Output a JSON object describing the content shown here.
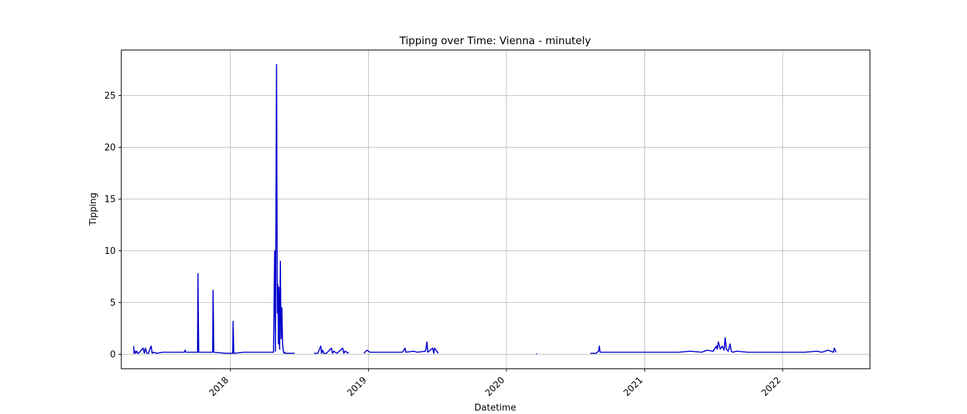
{
  "chart_data": {
    "type": "line",
    "title": "Tipping over Time: Vienna - minutely",
    "xlabel": "Datetime",
    "ylabel": "Tipping",
    "x_ticks": [
      "2018",
      "2019",
      "2020",
      "2021",
      "2022"
    ],
    "y_ticks": [
      "0",
      "5",
      "10",
      "15",
      "20",
      "25"
    ],
    "xlim": [
      "2017-03-18",
      "2022-08-20"
    ],
    "ylim": [
      -1.4,
      29.4
    ],
    "grid": true,
    "line_color": "#0000cc",
    "series": [
      {
        "segments": [
          {
            "x": [
              "2017-04-20",
              "2017-04-21",
              "2017-04-24",
              "2017-04-25",
              "2017-04-28",
              "2017-05-01",
              "2017-05-03",
              "2017-05-15",
              "2017-05-18",
              "2017-05-21",
              "2017-05-25",
              "2017-05-29",
              "2017-06-05",
              "2017-06-08",
              "2017-06-12",
              "2017-06-20",
              "2017-07-05",
              "2017-07-20",
              "2017-08-05",
              "2017-08-20",
              "2017-09-01",
              "2017-09-03",
              "2017-09-05",
              "2017-09-20",
              "2017-10-06",
              "2017-10-07",
              "2017-10-09",
              "2017-10-20",
              "2017-11-15",
              "2017-11-16",
              "2017-11-18",
              "2017-12-20",
              "2018-01-07",
              "2018-01-08",
              "2018-01-10",
              "2018-02-05",
              "2018-03-05",
              "2018-04-05",
              "2018-04-25",
              "2018-04-28",
              "2018-04-30",
              "2018-05-01",
              "2018-05-03",
              "2018-05-05",
              "2018-05-06",
              "2018-05-08",
              "2018-05-09",
              "2018-05-11",
              "2018-05-13",
              "2018-05-15",
              "2018-05-17",
              "2018-05-19",
              "2018-05-21",
              "2018-05-23",
              "2018-05-25",
              "2018-05-27",
              "2018-05-30",
              "2018-06-02",
              "2018-06-05",
              "2018-06-10",
              "2018-06-20"
            ],
            "y": [
              0.8,
              0.1,
              0.3,
              0.1,
              0.3,
              0.1,
              0.1,
              0.6,
              0.1,
              0.6,
              0.1,
              0.1,
              0.8,
              0.1,
              0.2,
              0.1,
              0.2,
              0.2,
              0.2,
              0.2,
              0.2,
              0.4,
              0.2,
              0.2,
              0.2,
              7.8,
              0.2,
              0.2,
              0.2,
              6.2,
              0.2,
              0.1,
              0.1,
              3.2,
              0.1,
              0.2,
              0.2,
              0.2,
              0.2,
              10.0,
              0.3,
              10.5,
              28.0,
              4.0,
              6.8,
              1.0,
              6.5,
              0.5,
              9.0,
              1.5,
              4.5,
              1.0,
              0.3,
              0.1,
              0.2,
              0.1,
              0.1,
              0.1,
              0.1,
              0.1,
              0.1
            ]
          },
          {
            "x": [
              "2018-08-10",
              "2018-08-20",
              "2018-08-28",
              "2018-08-30",
              "2018-09-02",
              "2018-09-05",
              "2018-09-08",
              "2018-09-12",
              "2018-09-25",
              "2018-09-28",
              "2018-10-01",
              "2018-10-10",
              "2018-10-25",
              "2018-10-28",
              "2018-10-31",
              "2018-11-10"
            ],
            "y": [
              0.1,
              0.1,
              0.8,
              0.1,
              0.4,
              0.1,
              0.1,
              0.1,
              0.6,
              0.1,
              0.3,
              0.1,
              0.6,
              0.1,
              0.3,
              0.1
            ]
          },
          {
            "x": [
              "2018-12-20",
              "2018-12-28",
              "2019-01-05",
              "2019-02-01",
              "2019-03-01",
              "2019-04-01",
              "2019-04-08",
              "2019-04-10",
              "2019-05-01",
              "2019-05-10",
              "2019-06-01",
              "2019-06-05",
              "2019-06-07",
              "2019-06-20",
              "2019-06-23",
              "2019-06-25",
              "2019-07-05"
            ],
            "y": [
              0.1,
              0.4,
              0.2,
              0.2,
              0.2,
              0.2,
              0.6,
              0.2,
              0.3,
              0.2,
              0.3,
              1.2,
              0.2,
              0.6,
              0.1,
              0.6,
              0.1
            ]
          },
          {
            "x": [
              "2020-03-20",
              "2020-03-22"
            ],
            "y": [
              0.05,
              0.05
            ]
          },
          {
            "x": [
              "2020-08-10",
              "2020-08-25",
              "2020-09-01",
              "2020-09-03",
              "2020-09-05",
              "2020-10-01",
              "2020-11-01",
              "2020-12-01",
              "2021-01-01",
              "2021-02-01",
              "2021-03-01",
              "2021-04-01",
              "2021-05-01",
              "2021-06-01",
              "2021-06-15",
              "2021-07-01",
              "2021-07-10",
              "2021-07-12",
              "2021-07-15",
              "2021-07-20",
              "2021-07-25",
              "2021-07-30",
              "2021-08-02",
              "2021-08-05",
              "2021-08-10",
              "2021-08-15",
              "2021-08-18",
              "2021-08-22",
              "2021-09-01",
              "2021-10-01",
              "2021-11-01",
              "2021-12-01",
              "2022-01-01",
              "2022-02-01",
              "2022-03-01",
              "2022-04-01",
              "2022-04-15",
              "2022-05-01",
              "2022-05-15",
              "2022-05-18",
              "2022-05-22"
            ],
            "y": [
              0.1,
              0.1,
              0.3,
              0.8,
              0.2,
              0.2,
              0.2,
              0.2,
              0.2,
              0.2,
              0.2,
              0.2,
              0.3,
              0.2,
              0.4,
              0.3,
              0.8,
              0.5,
              1.2,
              0.5,
              0.8,
              0.4,
              1.6,
              0.5,
              0.3,
              1.0,
              0.3,
              0.2,
              0.3,
              0.2,
              0.2,
              0.2,
              0.2,
              0.2,
              0.2,
              0.3,
              0.2,
              0.4,
              0.2,
              0.6,
              0.2
            ]
          }
        ]
      }
    ]
  }
}
